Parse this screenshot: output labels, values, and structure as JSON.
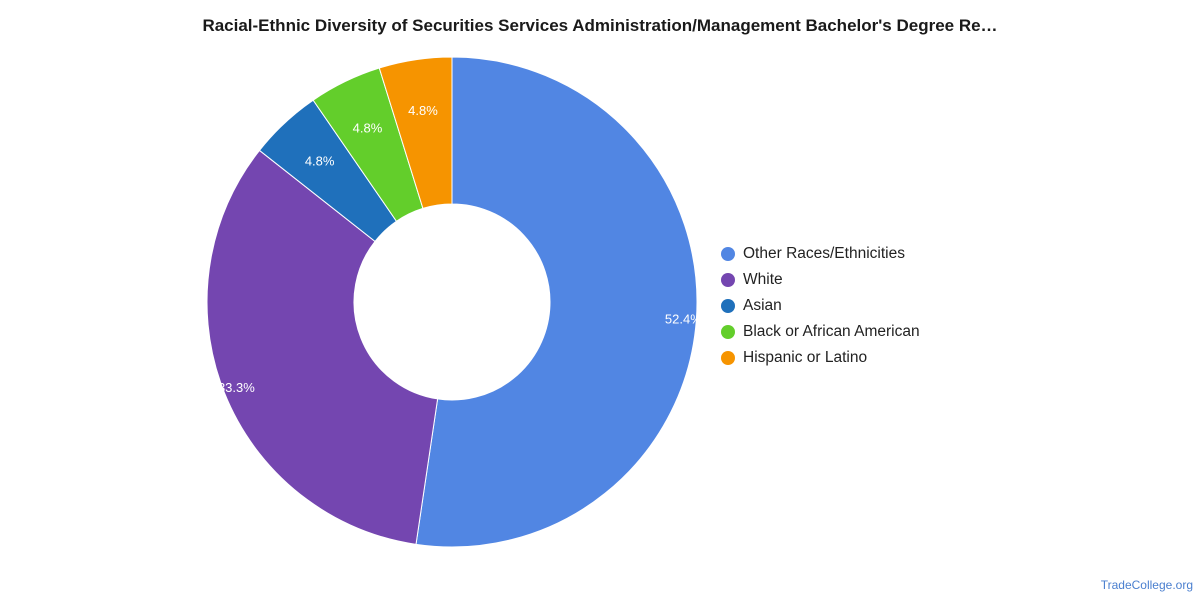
{
  "title": "Racial-Ethnic Diversity of Securities Services Administration/Management Bachelor's Degree Re…",
  "source": "TradeCollege.org",
  "chart_data": {
    "type": "pie",
    "variant": "donut",
    "title": "Racial-Ethnic Diversity of Securities Services Administration/Management Bachelor's Degree Re…",
    "legend_position": "right",
    "categories": [
      "Other Races/Ethnicities",
      "White",
      "Asian",
      "Black or African American",
      "Hispanic or Latino"
    ],
    "values": [
      52.4,
      33.3,
      4.8,
      4.8,
      4.8
    ],
    "value_labels": [
      "52.4%",
      "33.3%",
      "4.8%",
      "4.8%",
      "4.8%"
    ],
    "colors": [
      "#5186e3",
      "#7446b0",
      "#1f70bb",
      "#63ce2b",
      "#f69400"
    ]
  }
}
